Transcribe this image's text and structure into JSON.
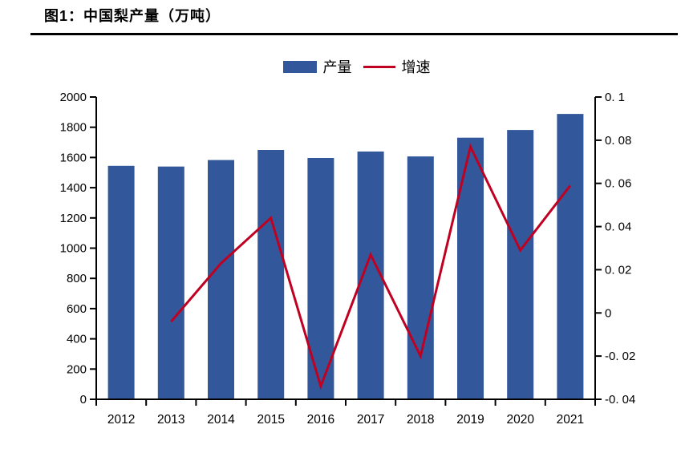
{
  "chart_data": {
    "type": "bar",
    "overlay": "line-on-secondary-axis",
    "title": "图1：中国梨产量（万吨）",
    "categories": [
      "2012",
      "2013",
      "2014",
      "2015",
      "2016",
      "2017",
      "2018",
      "2019",
      "2020",
      "2021"
    ],
    "series": [
      {
        "name": "产量",
        "kind": "bar",
        "axis": "left",
        "color": "#32589B",
        "values": [
          1545,
          1540,
          1583,
          1650,
          1597,
          1639,
          1607,
          1731,
          1782,
          1888
        ]
      },
      {
        "name": "增速",
        "kind": "line",
        "axis": "right",
        "color": "#C00021",
        "values": [
          null,
          -0.004,
          0.023,
          0.044,
          -0.034,
          0.027,
          -0.02,
          0.077,
          0.029,
          0.059
        ]
      }
    ],
    "left_axis": {
      "min": 0,
      "max": 2000,
      "step": 200,
      "tick_labels": [
        "0",
        "200",
        "400",
        "600",
        "800",
        "1000",
        "1200",
        "1400",
        "1600",
        "1800",
        "2000"
      ]
    },
    "right_axis": {
      "min": -0.04,
      "max": 0.1,
      "step": 0.02,
      "tick_labels": [
        "-0. 04",
        "-0. 02",
        "0",
        "0. 02",
        "0. 04",
        "0. 06",
        "0. 08",
        "0. 1"
      ]
    },
    "legend_position": "top-center",
    "grid": "off",
    "axis_color": "#000000",
    "unit_note": "万吨"
  }
}
